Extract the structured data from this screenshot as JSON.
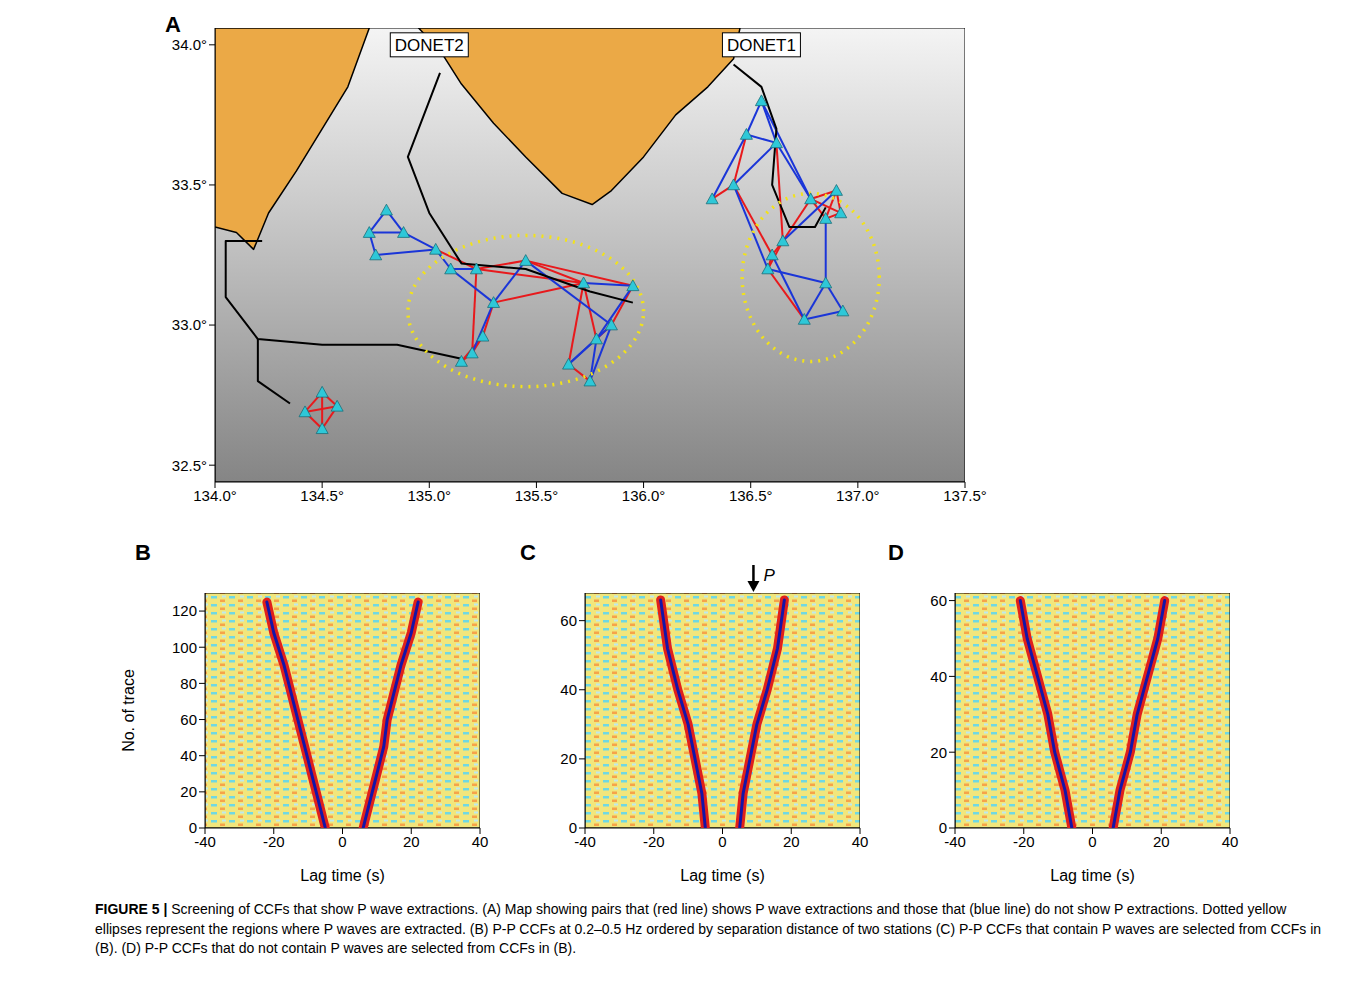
{
  "chart_data": [
    {
      "type": "map",
      "panel": "A",
      "xlim": [
        134.0,
        137.5
      ],
      "ylim": [
        32.44,
        34.06
      ],
      "xticks": [
        {
          "value": 134.0,
          "label": "134.0°"
        },
        {
          "value": 134.5,
          "label": "134.5°"
        },
        {
          "value": 135.0,
          "label": "135.0°"
        },
        {
          "value": 135.5,
          "label": "135.5°"
        },
        {
          "value": 136.0,
          "label": "136.0°"
        },
        {
          "value": 136.5,
          "label": "136.5°"
        },
        {
          "value": 137.0,
          "label": "137.0°"
        },
        {
          "value": 137.5,
          "label": "137.5°"
        }
      ],
      "yticks": [
        {
          "value": 32.5,
          "label": "32.5°"
        },
        {
          "value": 33.0,
          "label": "33.0°"
        },
        {
          "value": 33.5,
          "label": "33.5°"
        },
        {
          "value": 34.0,
          "label": "34.0°"
        }
      ],
      "land": [
        {
          "color": "#eba946",
          "lon": [
            134.0,
            134.72,
            134.62,
            134.5,
            134.38,
            134.25,
            134.18,
            134.1,
            134.0
          ],
          "lat": [
            34.06,
            34.06,
            33.85,
            33.7,
            33.55,
            33.4,
            33.27,
            33.33,
            33.35
          ]
        },
        {
          "color": "#eba946",
          "lon": [
            134.95,
            136.45,
            136.42,
            136.3,
            136.15,
            136.0,
            135.85,
            135.76,
            135.62,
            135.45,
            135.3,
            135.15,
            135.05
          ],
          "lat": [
            34.06,
            34.06,
            33.95,
            33.85,
            33.75,
            33.6,
            33.48,
            33.43,
            33.47,
            33.6,
            33.72,
            33.86,
            33.98
          ]
        }
      ],
      "cables": [
        {
          "color": "#000000",
          "lon": [
            135.05,
            134.9,
            135.0,
            135.15,
            135.45,
            135.75,
            135.95
          ],
          "lat": [
            33.9,
            33.6,
            33.4,
            33.22,
            33.2,
            33.12,
            33.08
          ]
        },
        {
          "color": "#000000",
          "lon": [
            134.22,
            134.05,
            134.05,
            134.2,
            134.5,
            134.85,
            135.15
          ],
          "lat": [
            33.3,
            33.3,
            33.1,
            32.95,
            32.93,
            32.93,
            32.88
          ]
        },
        {
          "color": "#000000",
          "lon": [
            134.2,
            134.2,
            134.35
          ],
          "lat": [
            32.95,
            32.8,
            32.72
          ]
        },
        {
          "color": "#000000",
          "lon": [
            136.42,
            136.55,
            136.62,
            136.6,
            136.68,
            136.8,
            136.85
          ],
          "lat": [
            33.93,
            33.85,
            33.7,
            33.5,
            33.35,
            33.35,
            33.42
          ]
        }
      ],
      "stations": {
        "color": "#2ec8d8",
        "lon": [
          134.72,
          134.8,
          134.75,
          134.88,
          135.03,
          135.1,
          135.22,
          135.45,
          135.3,
          135.2,
          135.25,
          135.15,
          135.72,
          135.95,
          135.85,
          135.75,
          135.65,
          135.78,
          134.5,
          134.42,
          134.57,
          134.5,
          136.55,
          136.48,
          136.62,
          136.32,
          136.42,
          136.6,
          136.65,
          136.58,
          136.78,
          136.9,
          136.85,
          136.92,
          136.75,
          136.93,
          136.85
        ],
        "lat": [
          33.33,
          33.41,
          33.25,
          33.33,
          33.27,
          33.2,
          33.2,
          33.23,
          33.08,
          32.9,
          32.96,
          32.87,
          33.15,
          33.14,
          33.0,
          32.8,
          32.86,
          32.95,
          32.76,
          32.69,
          32.71,
          32.63,
          33.8,
          33.68,
          33.65,
          33.45,
          33.5,
          33.25,
          33.3,
          33.2,
          33.45,
          33.48,
          33.38,
          33.4,
          33.02,
          33.05,
          33.15
        ]
      },
      "pairs": [
        {
          "color": "#e8191c",
          "edges": [
            [
              4,
              6
            ],
            [
              6,
              7
            ],
            [
              7,
              12
            ],
            [
              6,
              9
            ],
            [
              8,
              10
            ],
            [
              9,
              10
            ],
            [
              10,
              11
            ],
            [
              9,
              11
            ],
            [
              12,
              16
            ],
            [
              12,
              17
            ],
            [
              13,
              14
            ],
            [
              14,
              17
            ],
            [
              16,
              15
            ],
            [
              6,
              12
            ],
            [
              7,
              13
            ],
            [
              8,
              12
            ],
            [
              18,
              19
            ],
            [
              19,
              21
            ],
            [
              21,
              20
            ],
            [
              20,
              18
            ],
            [
              18,
              21
            ],
            [
              19,
              20
            ],
            [
              25,
              26
            ],
            [
              26,
              27
            ],
            [
              27,
              28
            ],
            [
              28,
              29
            ],
            [
              27,
              29
            ],
            [
              26,
              23
            ],
            [
              30,
              31
            ],
            [
              31,
              33
            ],
            [
              32,
              33
            ],
            [
              30,
              32
            ],
            [
              31,
              32
            ],
            [
              30,
              33
            ],
            [
              28,
              30
            ],
            [
              29,
              34
            ],
            [
              24,
              28
            ]
          ]
        },
        {
          "color": "#1a35d8",
          "edges": [
            [
              0,
              1
            ],
            [
              0,
              2
            ],
            [
              1,
              3
            ],
            [
              3,
              4
            ],
            [
              2,
              4
            ],
            [
              0,
              3
            ],
            [
              4,
              5
            ],
            [
              5,
              6
            ],
            [
              5,
              8
            ],
            [
              7,
              8
            ],
            [
              8,
              9
            ],
            [
              12,
              13
            ],
            [
              13,
              17
            ],
            [
              14,
              15
            ],
            [
              15,
              17
            ],
            [
              16,
              17
            ],
            [
              14,
              16
            ],
            [
              7,
              14
            ],
            [
              22,
              23
            ],
            [
              22,
              24
            ],
            [
              23,
              24
            ],
            [
              23,
              25
            ],
            [
              24,
              26
            ],
            [
              24,
              30
            ],
            [
              22,
              30
            ],
            [
              28,
              31
            ],
            [
              29,
              36
            ],
            [
              36,
              34
            ],
            [
              36,
              35
            ],
            [
              34,
              35
            ],
            [
              32,
              36
            ],
            [
              27,
              34
            ],
            [
              26,
              29
            ]
          ]
        }
      ],
      "regions": [
        {
          "color": "#f2e21a",
          "center": [
            135.45,
            33.05
          ],
          "radii": [
            0.55,
            0.27
          ]
        },
        {
          "color": "#f2e21a",
          "center": [
            136.78,
            33.17
          ],
          "radii": [
            0.32,
            0.3
          ]
        }
      ],
      "labels": [
        {
          "text": "DONET2",
          "lon": 135.0,
          "lat": 34.0
        },
        {
          "text": "DONET1",
          "lon": 136.55,
          "lat": 34.0
        }
      ]
    },
    {
      "type": "line",
      "panel": "B",
      "xlabel": "Lag time (s)",
      "ylabel": "No. of trace",
      "xlim": [
        -40,
        40
      ],
      "ylim": [
        0,
        130
      ],
      "xticks": [
        -40,
        -20,
        0,
        20,
        40
      ],
      "yticks": [
        0,
        20,
        40,
        60,
        80,
        100,
        120
      ],
      "series": [
        {
          "color": "#1414a8",
          "x": [
            -5,
            -7,
            -9,
            -11,
            -13,
            -15,
            -17,
            -20,
            -22
          ],
          "values": [
            0,
            15,
            30,
            45,
            60,
            75,
            90,
            108,
            125
          ]
        },
        {
          "color": "#1414a8",
          "x": [
            6,
            8,
            10,
            12,
            13,
            15,
            17,
            20,
            22
          ],
          "values": [
            0,
            15,
            30,
            45,
            60,
            75,
            90,
            108,
            125
          ]
        }
      ]
    },
    {
      "type": "line",
      "panel": "C",
      "xlabel": "Lag time (s)",
      "xlim": [
        -40,
        40
      ],
      "ylim": [
        0,
        68
      ],
      "xticks": [
        -40,
        -20,
        0,
        20,
        40
      ],
      "yticks": [
        0,
        20,
        40,
        60
      ],
      "series": [
        {
          "color": "#1414a8",
          "x": [
            -5,
            -6,
            -8,
            -10,
            -13,
            -16,
            -18
          ],
          "values": [
            0,
            10,
            20,
            30,
            40,
            52,
            66
          ]
        },
        {
          "color": "#1414a8",
          "x": [
            5,
            6,
            8,
            10,
            13,
            16,
            18
          ],
          "values": [
            0,
            10,
            20,
            30,
            40,
            52,
            66
          ]
        }
      ],
      "annotation": {
        "text": "P",
        "x": 9
      }
    },
    {
      "type": "line",
      "panel": "D",
      "xlabel": "Lag time (s)",
      "xlim": [
        -40,
        40
      ],
      "ylim": [
        0,
        62
      ],
      "xticks": [
        -40,
        -20,
        0,
        20,
        40
      ],
      "yticks": [
        0,
        20,
        40,
        60
      ],
      "series": [
        {
          "color": "#1414a8",
          "x": [
            -6,
            -8,
            -11,
            -13,
            -16,
            -19,
            -21
          ],
          "values": [
            0,
            10,
            20,
            30,
            40,
            50,
            60
          ]
        },
        {
          "color": "#1414a8",
          "x": [
            6,
            8,
            11,
            13,
            16,
            19,
            21
          ],
          "values": [
            0,
            10,
            20,
            30,
            40,
            50,
            60
          ]
        }
      ]
    }
  ],
  "caption_label": "FIGURE 5 |",
  "caption": "Screening of CCFs that show P wave extractions. (A) Map showing pairs that (red line) shows P wave extractions and those that (blue line) do not show P extractions. Dotted yellow ellipses represent the regions where P waves are extracted. (B) P-P CCFs at 0.2–0.5 Hz ordered by separation distance of two stations (C) P-P CCFs that contain P waves are selected from CCFs in (B). (D) P-P CCFs that do not contain P waves are selected from CCFs in (B)."
}
